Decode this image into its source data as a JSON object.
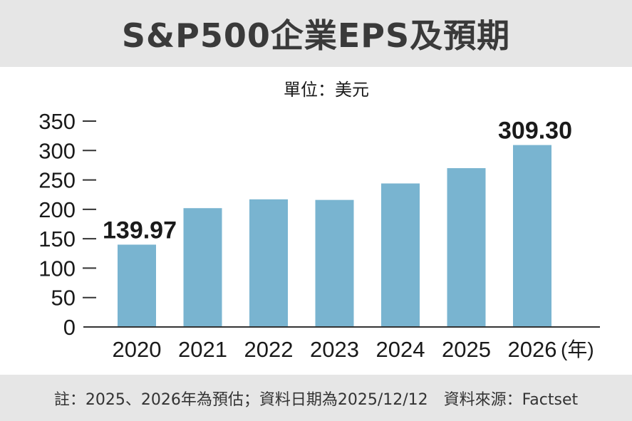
{
  "title": "S&P500企業EPS及預期",
  "unit_label": "單位：美元",
  "footer_note": "註：2025、2026年為預估；資料日期為2025/12/12　資料來源：Factset",
  "colors": {
    "bar": "#79b4d0",
    "axis": "#333333",
    "text": "#1a1a1a",
    "band": "#e6e6e6"
  },
  "chart_data": {
    "type": "bar",
    "title": "S&P500企業EPS及預期",
    "ylabel": "單位：美元",
    "xlabel": "(年)",
    "categories": [
      "2020",
      "2021",
      "2022",
      "2023",
      "2024",
      "2025",
      "2026"
    ],
    "values": [
      139.97,
      202,
      217,
      216,
      244,
      270,
      309.3
    ],
    "data_labels": [
      "139.97",
      "",
      "",
      "",
      "",
      "",
      "309.30"
    ],
    "ylim": [
      0,
      350
    ],
    "yticks": [
      0,
      50,
      100,
      150,
      200,
      250,
      300,
      350
    ],
    "ytick_labels": [
      "0",
      "50",
      "100",
      "150",
      "200",
      "250",
      "300",
      "350"
    ],
    "grid": false,
    "legend": "none"
  }
}
